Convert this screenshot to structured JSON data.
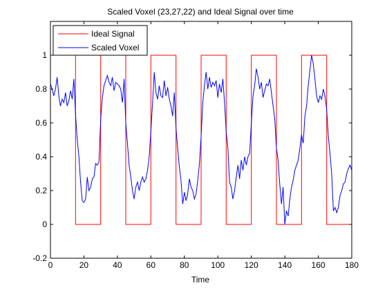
{
  "chart_data": {
    "type": "line",
    "title": "Scaled Voxel (23,27,22) and Ideal Signal over time",
    "xlabel": "Time",
    "ylabel": "",
    "xlim": [
      0,
      180
    ],
    "ylim": [
      -0.2,
      1.2
    ],
    "x_ticks": [
      0,
      20,
      40,
      60,
      80,
      100,
      120,
      140,
      160,
      180
    ],
    "y_ticks": [
      -0.2,
      0,
      0.2,
      0.4,
      0.6,
      0.8,
      1
    ],
    "grid": false,
    "legend_position": "top-left",
    "series": [
      {
        "name": "Ideal Signal",
        "color": "#ff0000",
        "style": "step",
        "x": [
          0,
          15,
          15,
          30,
          30,
          45,
          45,
          60,
          60,
          75,
          75,
          90,
          90,
          105,
          105,
          120,
          120,
          135,
          135,
          150,
          150,
          165,
          165,
          180
        ],
        "y": [
          1,
          1,
          0,
          0,
          1,
          1,
          0,
          0,
          1,
          1,
          0,
          0,
          1,
          1,
          0,
          0,
          1,
          1,
          0,
          0,
          1,
          1,
          0,
          0
        ]
      },
      {
        "name": "Scaled Voxel",
        "color": "#0000ff",
        "style": "line",
        "x": [
          0,
          1,
          2,
          3,
          4,
          5,
          6,
          7,
          8,
          9,
          10,
          11,
          12,
          13,
          14,
          15,
          16,
          17,
          18,
          19,
          20,
          21,
          22,
          23,
          24,
          25,
          26,
          27,
          28,
          29,
          30,
          31,
          32,
          33,
          34,
          35,
          36,
          37,
          38,
          39,
          40,
          41,
          42,
          43,
          44,
          45,
          46,
          47,
          48,
          49,
          50,
          51,
          52,
          53,
          54,
          55,
          56,
          57,
          58,
          59,
          60,
          61,
          62,
          63,
          64,
          65,
          66,
          67,
          68,
          69,
          70,
          71,
          72,
          73,
          74,
          75,
          76,
          77,
          78,
          79,
          80,
          81,
          82,
          83,
          84,
          85,
          86,
          87,
          88,
          89,
          90,
          91,
          92,
          93,
          94,
          95,
          96,
          97,
          98,
          99,
          100,
          101,
          102,
          103,
          104,
          105,
          106,
          107,
          108,
          109,
          110,
          111,
          112,
          113,
          114,
          115,
          116,
          117,
          118,
          119,
          120,
          121,
          122,
          123,
          124,
          125,
          126,
          127,
          128,
          129,
          130,
          131,
          132,
          133,
          134,
          135,
          136,
          137,
          138,
          139,
          140,
          141,
          142,
          143,
          144,
          145,
          146,
          147,
          148,
          149,
          150,
          151,
          152,
          153,
          154,
          155,
          156,
          157,
          158,
          159,
          160,
          161,
          162,
          163,
          164,
          165,
          166,
          167,
          168,
          169,
          170,
          171,
          172,
          173,
          174,
          175,
          176,
          177,
          178,
          179,
          180
        ],
        "y": [
          0.83,
          0.8,
          0.76,
          0.8,
          0.87,
          0.76,
          0.7,
          0.74,
          0.72,
          0.78,
          0.7,
          0.73,
          0.79,
          0.74,
          0.86,
          0.65,
          0.5,
          0.4,
          0.25,
          0.14,
          0.13,
          0.15,
          0.28,
          0.2,
          0.22,
          0.27,
          0.28,
          0.36,
          0.35,
          0.37,
          0.62,
          0.75,
          0.82,
          0.85,
          0.88,
          0.84,
          0.82,
          0.87,
          0.79,
          0.84,
          0.83,
          0.82,
          0.8,
          0.72,
          0.86,
          0.6,
          0.48,
          0.35,
          0.28,
          0.2,
          0.15,
          0.22,
          0.25,
          0.2,
          0.25,
          0.28,
          0.25,
          0.27,
          0.32,
          0.4,
          0.55,
          0.72,
          0.9,
          0.78,
          0.74,
          0.82,
          0.76,
          0.75,
          0.85,
          0.76,
          0.81,
          0.74,
          0.7,
          0.64,
          0.78,
          0.57,
          0.45,
          0.34,
          0.26,
          0.12,
          0.19,
          0.14,
          0.18,
          0.27,
          0.22,
          0.2,
          0.15,
          0.18,
          0.26,
          0.36,
          0.52,
          0.72,
          0.82,
          0.9,
          0.8,
          0.87,
          0.81,
          0.84,
          0.82,
          0.85,
          0.75,
          0.83,
          0.78,
          0.86,
          0.72,
          0.55,
          0.45,
          0.25,
          0.22,
          0.15,
          0.2,
          0.28,
          0.35,
          0.27,
          0.38,
          0.32,
          0.4,
          0.35,
          0.4,
          0.42,
          0.6,
          0.76,
          0.82,
          0.92,
          0.87,
          0.8,
          0.84,
          0.75,
          0.79,
          0.83,
          0.82,
          0.86,
          0.78,
          0.7,
          0.62,
          0.45,
          0.38,
          0.24,
          0.12,
          0.22,
          0.0,
          0.08,
          0.05,
          0.15,
          0.22,
          0.26,
          0.32,
          0.35,
          0.38,
          0.45,
          0.53,
          0.48,
          0.64,
          0.7,
          0.82,
          0.91,
          1.0,
          0.95,
          0.86,
          0.76,
          0.72,
          0.76,
          0.74,
          0.8,
          0.76,
          0.68,
          0.52,
          0.42,
          0.3,
          0.08,
          0.1,
          0.07,
          0.1,
          0.17,
          0.2,
          0.24,
          0.25,
          0.3,
          0.33,
          0.35,
          0.32
        ]
      }
    ]
  }
}
